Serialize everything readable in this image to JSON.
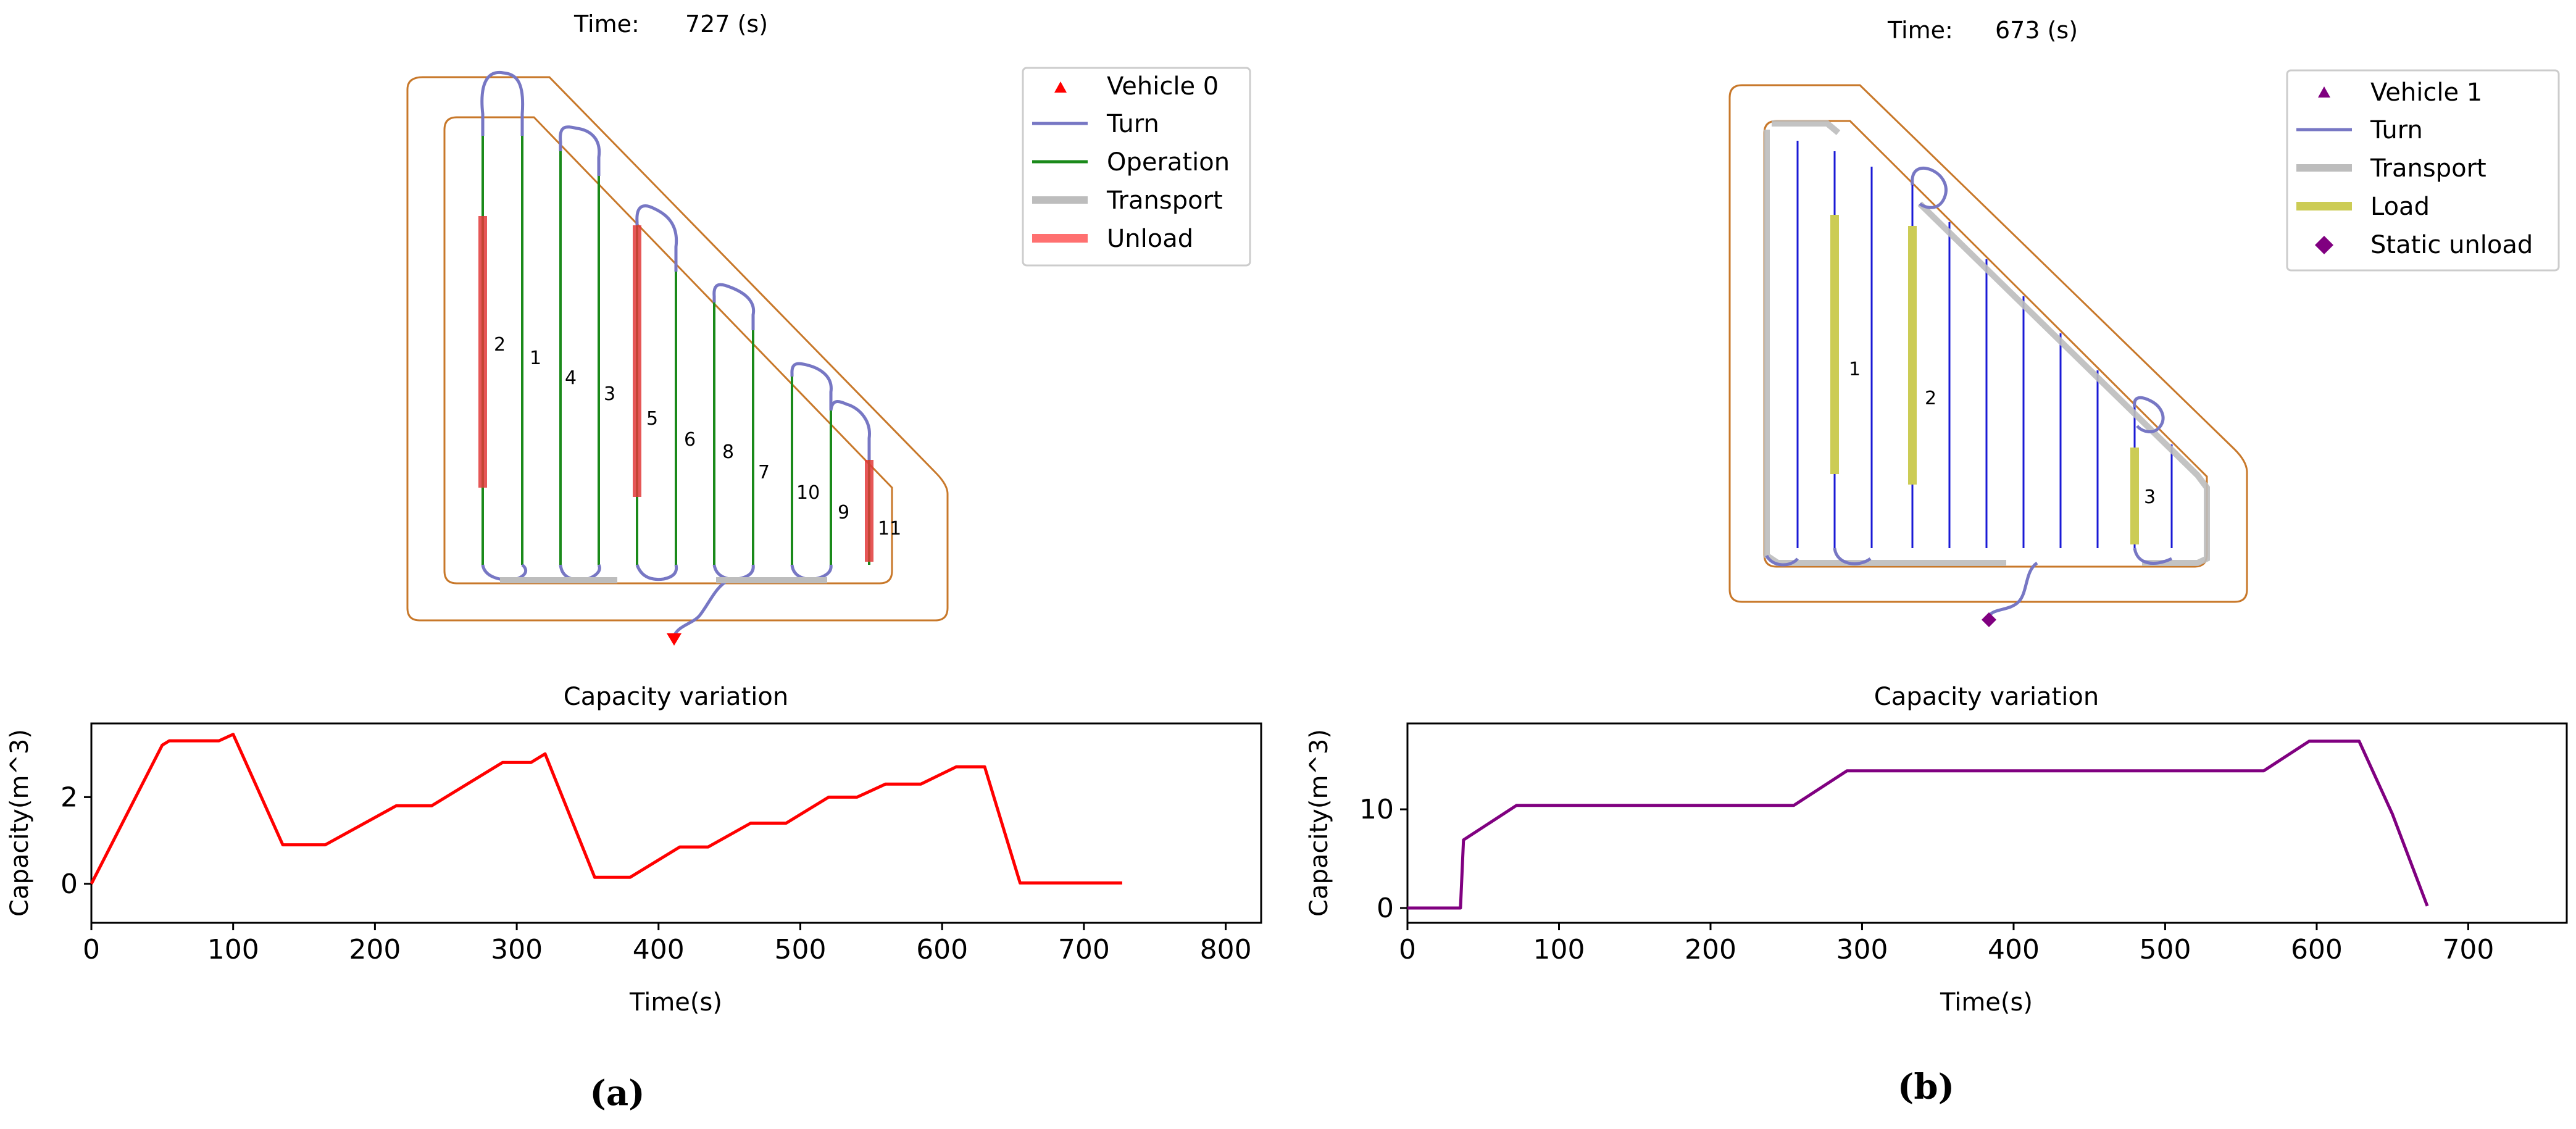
{
  "panels": [
    {
      "id": "a",
      "caption": "(a)",
      "time_label": "Time:",
      "time_value": "727 (s)",
      "legend": [
        {
          "label": "Vehicle 0",
          "kind": "triangle",
          "color": "#ff0000"
        },
        {
          "label": "Turn",
          "kind": "line",
          "color": "#7777c4"
        },
        {
          "label": "Operation",
          "kind": "line",
          "color": "#1a8a1a"
        },
        {
          "label": "Transport",
          "kind": "thickline",
          "color": "#bdbdbd"
        },
        {
          "label": "Unload",
          "kind": "thickline",
          "color": "#ff7070"
        }
      ],
      "track_labels": [
        "2",
        "1",
        "4",
        "3",
        "5",
        "6",
        "8",
        "7",
        "10",
        "9",
        "11"
      ]
    },
    {
      "id": "b",
      "caption": "(b)",
      "time_label": "Time:",
      "time_value": "673 (s)",
      "legend": [
        {
          "label": "Vehicle 1",
          "kind": "triangle",
          "color": "#800080"
        },
        {
          "label": "Turn",
          "kind": "line",
          "color": "#7777c4"
        },
        {
          "label": "Transport",
          "kind": "thickline",
          "color": "#bdbdbd"
        },
        {
          "label": "Load",
          "kind": "thickline",
          "color": "#cccc55"
        },
        {
          "label": "Static unload",
          "kind": "diamond",
          "color": "#800080"
        }
      ],
      "track_labels": [
        "1",
        "2",
        "3"
      ]
    }
  ],
  "chart_data": [
    {
      "type": "line",
      "title": "Capacity variation",
      "xlabel": "Time(s)",
      "ylabel": "Capacity(m^3)",
      "xlim": [
        0,
        825
      ],
      "ylim": [
        -0.9,
        3.7
      ],
      "xticks": [
        0,
        100,
        200,
        300,
        400,
        500,
        600,
        700,
        800
      ],
      "yticks": [
        0,
        2
      ],
      "color": "#ff0000",
      "series": [
        {
          "name": "Vehicle 0",
          "x": [
            0,
            50,
            55,
            90,
            100,
            135,
            165,
            215,
            240,
            290,
            310,
            320,
            355,
            380,
            415,
            435,
            465,
            490,
            520,
            540,
            560,
            585,
            610,
            630,
            655,
            727
          ],
          "y": [
            0,
            3.2,
            3.3,
            3.3,
            3.45,
            0.9,
            0.9,
            1.8,
            1.8,
            2.8,
            2.8,
            3.0,
            0.15,
            0.15,
            0.85,
            0.85,
            1.4,
            1.4,
            2.0,
            2.0,
            2.3,
            2.3,
            2.7,
            2.7,
            0.02,
            0.02
          ]
        }
      ]
    },
    {
      "type": "line",
      "title": "Capacity variation",
      "xlabel": "Time(s)",
      "ylabel": "Capacity(m^3)",
      "xlim": [
        0,
        765
      ],
      "ylim": [
        -1.5,
        18.7
      ],
      "xticks": [
        0,
        100,
        200,
        300,
        400,
        500,
        600,
        700
      ],
      "yticks": [
        0,
        10
      ],
      "color": "#800080",
      "series": [
        {
          "name": "Vehicle 1",
          "x": [
            0,
            35,
            37,
            72,
            255,
            290,
            565,
            595,
            628,
            650,
            673
          ],
          "y": [
            0,
            0,
            6.9,
            10.4,
            10.4,
            13.9,
            13.9,
            16.9,
            16.9,
            9.5,
            0.2
          ]
        }
      ]
    }
  ]
}
